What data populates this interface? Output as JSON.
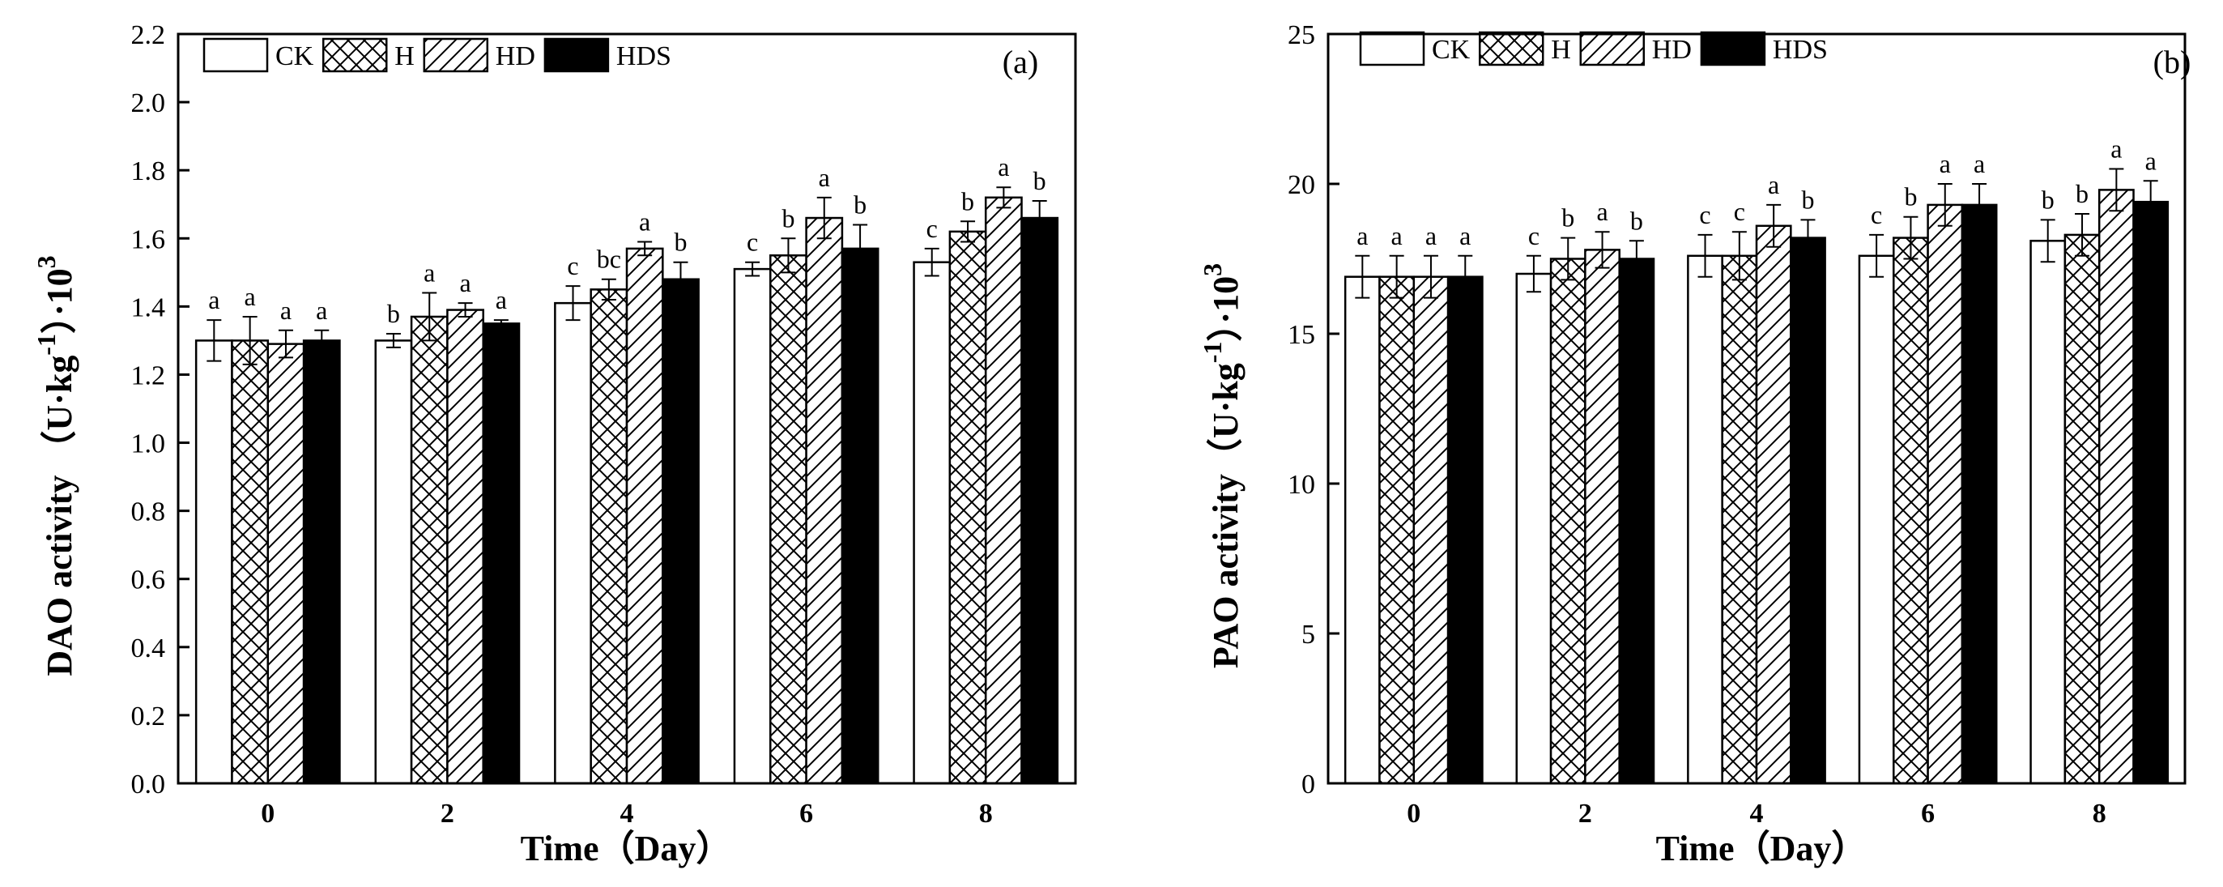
{
  "chart_data": [
    {
      "type": "bar",
      "panel_label": "(a)",
      "categories": [
        "0",
        "2",
        "4",
        "6",
        "8"
      ],
      "xlabel": "Time（Day）",
      "ylabel": {
        "main": "DAO activity （U·kg",
        "sup1": "-1",
        "mid": "）·10",
        "sup2": "3"
      },
      "ylim": [
        0,
        2.2
      ],
      "yticks": [
        "0.0",
        "0.2",
        "0.4",
        "0.6",
        "0.8",
        "1.0",
        "1.2",
        "1.4",
        "1.6",
        "1.8",
        "2.0",
        "2.2"
      ],
      "ytick_values": [
        0,
        0.2,
        0.4,
        0.6,
        0.8,
        1.0,
        1.2,
        1.4,
        1.6,
        1.8,
        2.0,
        2.2
      ],
      "legend": [
        "CK",
        "H",
        "HD",
        "HDS"
      ],
      "legend_position": "top-left",
      "series": [
        {
          "name": "CK",
          "pattern": "white",
          "values": [
            1.3,
            1.3,
            1.41,
            1.51,
            1.53
          ],
          "errors": [
            0.06,
            0.02,
            0.05,
            0.02,
            0.04
          ],
          "labels": [
            "a",
            "b",
            "c",
            "c",
            "c"
          ]
        },
        {
          "name": "H",
          "pattern": "crosshatch",
          "values": [
            1.3,
            1.37,
            1.45,
            1.55,
            1.62
          ],
          "errors": [
            0.07,
            0.07,
            0.03,
            0.05,
            0.03
          ],
          "labels": [
            "a",
            "a",
            "bc",
            "b",
            "b"
          ]
        },
        {
          "name": "HD",
          "pattern": "diagonal",
          "values": [
            1.29,
            1.39,
            1.57,
            1.66,
            1.72
          ],
          "errors": [
            0.04,
            0.02,
            0.02,
            0.06,
            0.03
          ],
          "labels": [
            "a",
            "a",
            "a",
            "a",
            "a"
          ]
        },
        {
          "name": "HDS",
          "pattern": "black",
          "values": [
            1.3,
            1.35,
            1.48,
            1.57,
            1.66
          ],
          "errors": [
            0.03,
            0.01,
            0.05,
            0.07,
            0.05
          ],
          "labels": [
            "a",
            "a",
            "b",
            "b",
            "b"
          ]
        }
      ]
    },
    {
      "type": "bar",
      "panel_label": "(b)",
      "categories": [
        "0",
        "2",
        "4",
        "6",
        "8"
      ],
      "xlabel": "Time（Day）",
      "ylabel": {
        "main": "PAO activity（U·kg",
        "sup1": "-1",
        "mid": "）·10",
        "sup2": "3"
      },
      "ylim": [
        0,
        25
      ],
      "yticks": [
        "0",
        "5",
        "10",
        "15",
        "20",
        "25"
      ],
      "ytick_values": [
        0,
        5,
        10,
        15,
        20,
        25
      ],
      "legend": [
        "CK",
        "H",
        "HD",
        "HDS"
      ],
      "legend_position": "top-left",
      "series": [
        {
          "name": "CK",
          "pattern": "white",
          "values": [
            16.9,
            17.0,
            17.6,
            17.6,
            18.1
          ],
          "errors": [
            0.7,
            0.6,
            0.7,
            0.7,
            0.7
          ],
          "labels": [
            "a",
            "c",
            "c",
            "c",
            "b"
          ]
        },
        {
          "name": "H",
          "pattern": "crosshatch",
          "values": [
            16.9,
            17.5,
            17.6,
            18.2,
            18.3
          ],
          "errors": [
            0.7,
            0.7,
            0.8,
            0.7,
            0.7
          ],
          "labels": [
            "a",
            "b",
            "c",
            "b",
            "b"
          ]
        },
        {
          "name": "HD",
          "pattern": "diagonal",
          "values": [
            16.9,
            17.8,
            18.6,
            19.3,
            19.8
          ],
          "errors": [
            0.7,
            0.6,
            0.7,
            0.7,
            0.7
          ],
          "labels": [
            "a",
            "a",
            "a",
            "a",
            "a"
          ]
        },
        {
          "name": "HDS",
          "pattern": "black",
          "values": [
            16.9,
            17.5,
            18.2,
            19.3,
            19.4
          ],
          "errors": [
            0.7,
            0.6,
            0.6,
            0.7,
            0.7
          ],
          "labels": [
            "a",
            "b",
            "b",
            "a",
            "a"
          ]
        }
      ]
    }
  ]
}
